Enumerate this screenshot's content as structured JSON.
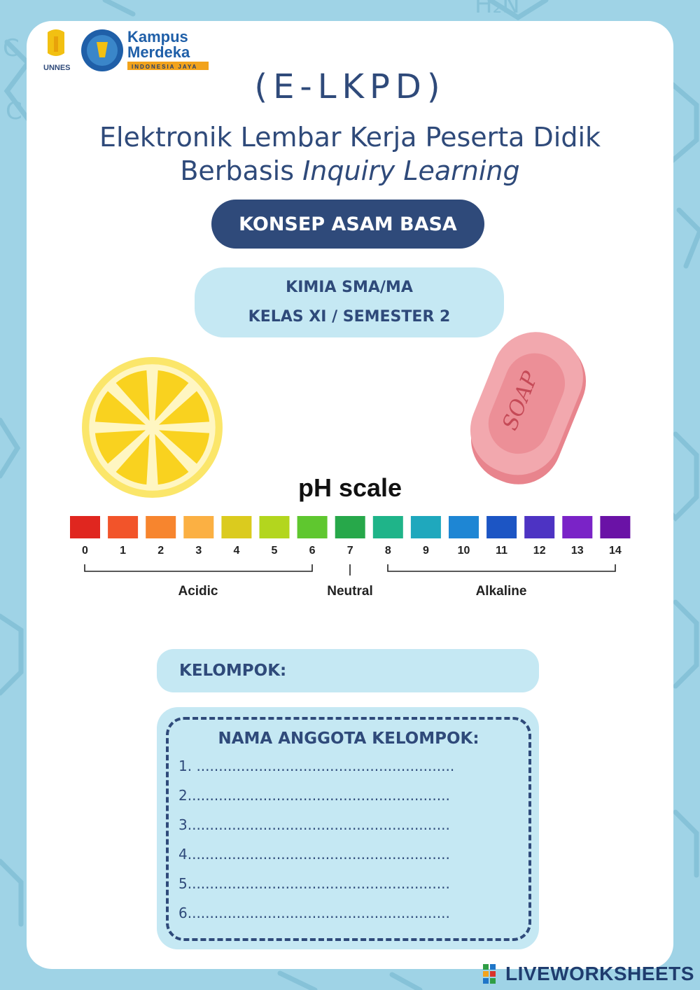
{
  "header": {
    "logo_unnes_text": "UNNES",
    "logo_kampus_line1": "Kampus",
    "logo_kampus_line2": "Merdeka",
    "logo_kampus_tagline": "INDONESIA JAYA"
  },
  "title": "(E-LKPD)",
  "subtitle_line1": "Elektronik Lembar Kerja Peserta Didik",
  "subtitle_line2_plain": "Berbasis ",
  "subtitle_line2_italic": "Inquiry Learning",
  "topic_label": "KONSEP ASAM BASA",
  "subject_line1": "KIMIA SMA/MA",
  "subject_line2": "KELAS XI / SEMESTER 2",
  "soap_label": "SOAP",
  "ph_scale": {
    "title": "pH scale",
    "levels": [
      "0",
      "1",
      "2",
      "3",
      "4",
      "5",
      "6",
      "7",
      "8",
      "9",
      "10",
      "11",
      "12",
      "13",
      "14"
    ],
    "colors": [
      "#e0261f",
      "#f2542a",
      "#f7852e",
      "#fbb043",
      "#dbcb1e",
      "#b3d61e",
      "#5fc72f",
      "#27a84a",
      "#1fb489",
      "#1fa8bd",
      "#1e86d4",
      "#1c55c4",
      "#4d33c3",
      "#7a23c7",
      "#6a12a6"
    ],
    "groups": {
      "acidic": "Acidic",
      "neutral": "Neutral",
      "alkaline": "Alkaline"
    }
  },
  "kelompok_label": "KELOMPOK:",
  "members": {
    "title": "NAMA ANGGOTA KELOMPOK:",
    "lines": [
      "1. ..........................................................",
      "2...........................................................",
      "3...........................................................",
      "4...........................................................",
      "5...........................................................",
      "6..........................................................."
    ]
  },
  "watermark": "LIVEWORKSHEETS"
}
